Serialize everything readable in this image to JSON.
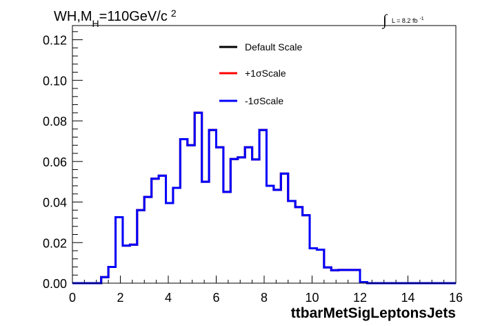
{
  "title": {
    "process": "WH,M",
    "subscript": "H",
    "mass": "=110GeV/c",
    "superscript": "2"
  },
  "luminosity": {
    "integral_symbol": "∫",
    "text": "L = 8.2 fb",
    "exponent": "-1"
  },
  "chart_data": {
    "type": "line",
    "style": "step-histogram",
    "xlabel": "ttbarMetSigLeptonsJets",
    "ylabel": "",
    "xlim": [
      0,
      16
    ],
    "ylim": [
      0,
      0.127
    ],
    "x_ticks": [
      "0",
      "2",
      "4",
      "6",
      "8",
      "10",
      "12",
      "14",
      "16"
    ],
    "y_ticks": [
      "0.00",
      "0.02",
      "0.04",
      "0.06",
      "0.08",
      "0.10",
      "0.12"
    ],
    "bin_edges_start": 0,
    "bin_width": 0.3,
    "series": [
      {
        "name": "Default Scale",
        "color": "#000000",
        "values": [
          0,
          0,
          0,
          0,
          0.003,
          0.008,
          0.0325,
          0.0185,
          0.019,
          0.036,
          0.0425,
          0.0515,
          0.053,
          0.0395,
          0.047,
          0.071,
          0.068,
          0.084,
          0.05,
          0.0755,
          0.067,
          0.045,
          0.0612,
          0.062,
          0.067,
          0.061,
          0.0755,
          0.048,
          0.046,
          0.054,
          0.0405,
          0.0375,
          0.0335,
          0.0172,
          0.0165,
          0.0078,
          0.0064,
          0.0065,
          0.0065,
          0.0065,
          0.0005,
          0,
          0,
          0,
          0,
          0,
          0,
          0,
          0,
          0,
          0,
          0,
          0,
          0
        ]
      },
      {
        "name": "+1σScale",
        "color": "#ff0000",
        "values": [
          0,
          0,
          0,
          0,
          0.003,
          0.008,
          0.0325,
          0.0185,
          0.019,
          0.036,
          0.0425,
          0.0515,
          0.053,
          0.0395,
          0.047,
          0.071,
          0.068,
          0.084,
          0.05,
          0.0755,
          0.067,
          0.045,
          0.0612,
          0.062,
          0.067,
          0.061,
          0.0755,
          0.048,
          0.046,
          0.054,
          0.0405,
          0.0375,
          0.0335,
          0.0172,
          0.0165,
          0.0078,
          0.0064,
          0.0065,
          0.0065,
          0.0065,
          0.0005,
          0,
          0,
          0,
          0,
          0,
          0,
          0,
          0,
          0,
          0,
          0,
          0,
          0
        ]
      },
      {
        "name": "-1σScale",
        "color": "#0000ff",
        "values": [
          0,
          0,
          0,
          0,
          0.003,
          0.008,
          0.0325,
          0.0185,
          0.019,
          0.036,
          0.0425,
          0.0515,
          0.053,
          0.0395,
          0.047,
          0.071,
          0.068,
          0.084,
          0.05,
          0.0755,
          0.067,
          0.045,
          0.0612,
          0.062,
          0.067,
          0.061,
          0.0755,
          0.048,
          0.046,
          0.054,
          0.0405,
          0.0375,
          0.0335,
          0.0172,
          0.0165,
          0.0078,
          0.0064,
          0.0065,
          0.0065,
          0.0065,
          0.0005,
          0,
          0,
          0,
          0,
          0,
          0,
          0,
          0,
          0,
          0,
          0,
          0,
          0
        ]
      }
    ],
    "legend_position": "top-center",
    "grid": false
  }
}
